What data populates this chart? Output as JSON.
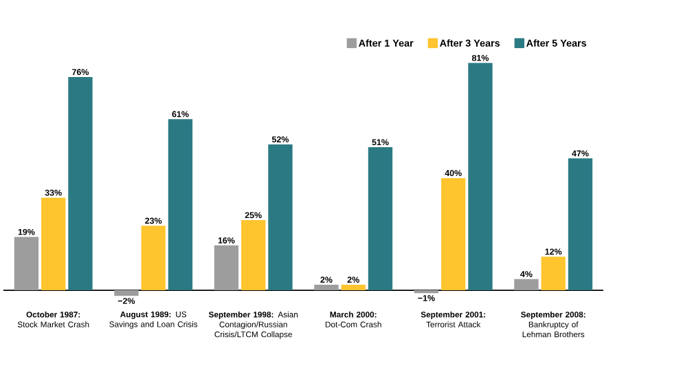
{
  "chart_data": {
    "type": "bar",
    "categories": [
      "**October 1987:** Stock Market Crash",
      "**August 1989:** US Savings and Loan Crisis",
      "**September 1998:** Asian Contagion/Russian Crisis/LTCM Collapse",
      "**March 2000:** Dot-Com Crash",
      "**September 2001:** Terrorist Attack",
      "**September 2008:** Bankruptcy of Lehman Brothers"
    ],
    "series": [
      {
        "name": "After 1 Year",
        "color": "#9d9d9d",
        "values": [
          19,
          -2,
          16,
          2,
          -1,
          4
        ],
        "value_labels": [
          "19%",
          "−2%",
          "16%",
          "2%",
          "−1%",
          "4%"
        ]
      },
      {
        "name": "After 3 Years",
        "color": "#fec52e",
        "values": [
          33,
          23,
          25,
          2,
          40,
          12
        ],
        "value_labels": [
          "33%",
          "23%",
          "25%",
          "2%",
          "40%",
          "12%"
        ]
      },
      {
        "name": "After 5 Years",
        "color": "#2b7a83",
        "values": [
          76,
          61,
          52,
          51,
          81,
          47
        ],
        "value_labels": [
          "76%",
          "61%",
          "52%",
          "51%",
          "81%",
          "47%"
        ]
      }
    ],
    "legend": "top right"
  }
}
